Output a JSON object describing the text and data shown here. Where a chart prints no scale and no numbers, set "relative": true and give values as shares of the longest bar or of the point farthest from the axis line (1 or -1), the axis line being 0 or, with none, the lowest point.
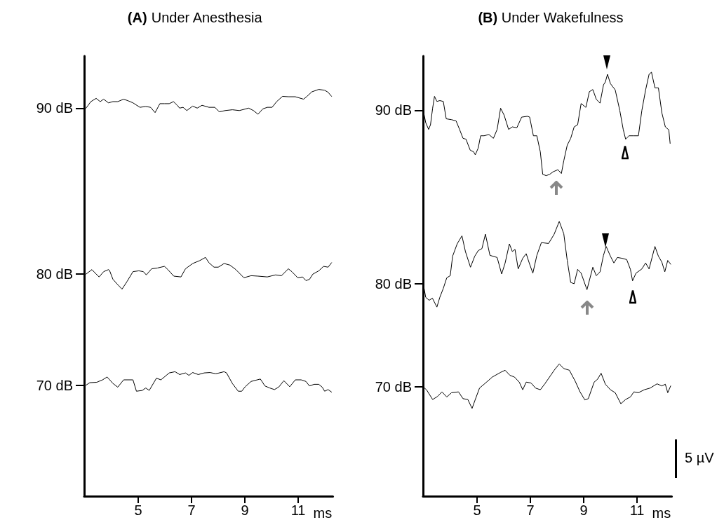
{
  "chart_data": [
    {
      "type": "line",
      "title": "(A) Under Anesthesia",
      "xlabel": "ms",
      "xlim": [
        2.97,
        12.3
      ],
      "xticks": [
        5,
        7,
        9,
        11
      ],
      "relative": true,
      "legend": "left",
      "grid": false,
      "marker": "none",
      "line_style": "solid",
      "series": [
        {
          "name": "90 dB",
          "color": "#000000",
          "x": [
            3.04,
            3.22,
            3.42,
            3.57,
            3.7,
            3.88,
            4.05,
            4.23,
            4.45,
            4.62,
            4.8,
            5.06,
            5.28,
            5.46,
            5.63,
            5.81,
            5.98,
            6.16,
            6.32,
            6.46,
            6.55,
            6.68,
            6.82,
            7.04,
            7.21,
            7.39,
            7.65,
            7.87,
            8.04,
            8.26,
            8.53,
            8.79,
            9.14,
            9.32,
            9.49,
            9.67,
            9.84,
            10.02,
            10.19,
            10.41,
            10.63,
            10.89,
            11.2,
            11.33,
            11.51,
            11.77,
            11.99,
            12.12,
            12.25
          ],
          "values": [
            0.954,
            0.97,
            0.978,
            0.97,
            0.976,
            0.967,
            0.97,
            0.97,
            0.976,
            0.972,
            0.967,
            0.956,
            0.958,
            0.956,
            0.943,
            0.965,
            0.965,
            0.965,
            0.97,
            0.961,
            0.954,
            0.956,
            0.948,
            0.959,
            0.954,
            0.961,
            0.956,
            0.956,
            0.945,
            0.948,
            0.95,
            0.948,
            0.954,
            0.948,
            0.939,
            0.952,
            0.956,
            0.956,
            0.97,
            0.983,
            0.982,
            0.982,
            0.976,
            0.983,
            0.994,
            1,
            0.998,
            0.993,
            0.983
          ]
        },
        {
          "name": "80 dB",
          "color": "#000000",
          "x": [
            3.04,
            3.26,
            3.39,
            3.53,
            3.7,
            3.88,
            3.92,
            4.05,
            4.23,
            4.39,
            4.58,
            4.8,
            5.02,
            5.19,
            5.3,
            5.5,
            5.72,
            5.98,
            6.11,
            6.33,
            6.6,
            6.77,
            7.04,
            7.3,
            7.52,
            7.65,
            7.84,
            8.0,
            8.22,
            8.44,
            8.66,
            8.96,
            9.23,
            9.49,
            9.84,
            10.15,
            10.37,
            10.63,
            10.76,
            10.98,
            11.16,
            11.29,
            11.42,
            11.55,
            11.77,
            11.95,
            12.12,
            12.25
          ],
          "values": [
            0.546,
            0.557,
            0.548,
            0.539,
            0.552,
            0.557,
            0.555,
            0.533,
            0.52,
            0.509,
            0.528,
            0.552,
            0.554,
            0.552,
            0.544,
            0.559,
            0.561,
            0.565,
            0.557,
            0.541,
            0.539,
            0.559,
            0.572,
            0.579,
            0.587,
            0.574,
            0.563,
            0.563,
            0.572,
            0.568,
            0.557,
            0.537,
            0.542,
            0.541,
            0.539,
            0.544,
            0.542,
            0.559,
            0.552,
            0.537,
            0.539,
            0.53,
            0.533,
            0.546,
            0.554,
            0.565,
            0.563,
            0.574
          ]
        },
        {
          "name": "70 dB",
          "color": "#000000",
          "x": [
            3.04,
            3.18,
            3.44,
            3.66,
            3.83,
            4.05,
            4.23,
            4.45,
            4.8,
            4.93,
            5.15,
            5.28,
            5.41,
            5.68,
            5.85,
            6.16,
            6.38,
            6.55,
            6.77,
            6.9,
            7.04,
            7.25,
            7.47,
            7.69,
            7.91,
            8.22,
            8.31,
            8.53,
            8.75,
            8.88,
            9.01,
            9.23,
            9.58,
            9.75,
            9.93,
            10.11,
            10.28,
            10.46,
            10.68,
            10.89,
            11.11,
            11.29,
            11.42,
            11.6,
            11.77,
            11.9,
            11.99,
            12.12,
            12.25
          ],
          "values": [
            0.273,
            0.279,
            0.28,
            0.286,
            0.293,
            0.277,
            0.268,
            0.286,
            0.286,
            0.258,
            0.26,
            0.266,
            0.26,
            0.29,
            0.286,
            0.303,
            0.306,
            0.299,
            0.303,
            0.297,
            0.304,
            0.299,
            0.303,
            0.304,
            0.301,
            0.306,
            0.303,
            0.277,
            0.258,
            0.258,
            0.269,
            0.282,
            0.288,
            0.271,
            0.266,
            0.262,
            0.269,
            0.284,
            0.269,
            0.286,
            0.286,
            0.282,
            0.271,
            0.275,
            0.275,
            0.268,
            0.258,
            0.262,
            0.256
          ]
        }
      ]
    },
    {
      "type": "line",
      "title": "(B) Under Wakefulness",
      "xlabel": "ms",
      "xlim": [
        2.97,
        12.3
      ],
      "xticks": [
        5,
        7,
        9,
        11
      ],
      "relative": true,
      "legend": "left",
      "grid": false,
      "marker": "none",
      "line_style": "solid",
      "annotations": [
        "5 µV"
      ],
      "series": [
        {
          "name": "90 dB",
          "color": "#000000",
          "x": [
            2.98,
            3.07,
            3.18,
            3.25,
            3.33,
            3.4,
            3.49,
            3.6,
            3.73,
            3.84,
            4.04,
            4.21,
            4.34,
            4.47,
            4.58,
            4.74,
            4.87,
            4.93,
            5.04,
            5.13,
            5.26,
            5.44,
            5.61,
            5.75,
            5.88,
            6.01,
            6.18,
            6.32,
            6.49,
            6.67,
            6.89,
            6.97,
            7.11,
            7.24,
            7.37,
            7.46,
            7.59,
            7.72,
            7.85,
            8.03,
            8.16,
            8.25,
            8.38,
            8.51,
            8.64,
            8.77,
            8.9,
            9.08,
            9.21,
            9.34,
            9.47,
            9.61,
            9.74,
            9.81,
            9.89,
            10.0,
            10.18,
            10.35,
            10.48,
            10.57,
            10.7,
            10.88,
            11.05,
            11.18,
            11.32,
            11.45,
            11.54,
            11.67,
            11.8,
            11.93,
            12.06,
            12.19,
            12.24
          ],
          "values": [
            0.91,
            0.881,
            0.865,
            0.876,
            0.915,
            0.943,
            0.931,
            0.933,
            0.931,
            0.89,
            0.888,
            0.885,
            0.865,
            0.844,
            0.842,
            0.816,
            0.812,
            0.805,
            0.821,
            0.85,
            0.85,
            0.853,
            0.844,
            0.865,
            0.915,
            0.899,
            0.865,
            0.871,
            0.869,
            0.894,
            0.896,
            0.894,
            0.85,
            0.85,
            0.812,
            0.759,
            0.756,
            0.759,
            0.765,
            0.77,
            0.761,
            0.791,
            0.828,
            0.844,
            0.871,
            0.876,
            0.926,
            0.917,
            0.954,
            0.959,
            0.936,
            0.927,
            0.97,
            0.977,
            0.995,
            0.973,
            0.958,
            0.91,
            0.865,
            0.842,
            0.85,
            0.85,
            0.85,
            0.91,
            0.958,
            0.995,
            1,
            0.963,
            0.963,
            0.904,
            0.871,
            0.864,
            0.832
          ]
        },
        {
          "name": "80 dB",
          "color": "#000000",
          "x": [
            2.98,
            3.07,
            3.2,
            3.32,
            3.49,
            3.6,
            3.73,
            3.86,
            3.99,
            4.08,
            4.25,
            4.43,
            4.56,
            4.75,
            4.91,
            5.04,
            5.18,
            5.31,
            5.48,
            5.75,
            5.92,
            6.05,
            6.21,
            6.32,
            6.42,
            6.54,
            6.71,
            6.84,
            6.97,
            7.09,
            7.24,
            7.41,
            7.68,
            7.89,
            8.08,
            8.25,
            8.38,
            8.51,
            8.64,
            8.77,
            8.9,
            9.12,
            9.34,
            9.47,
            9.61,
            9.74,
            9.84,
            10.0,
            10.13,
            10.26,
            10.44,
            10.61,
            10.75,
            10.83,
            10.96,
            11.18,
            11.32,
            11.45,
            11.67,
            11.8,
            11.93,
            12.04,
            12.15,
            12.26
          ],
          "values": [
            0.501,
            0.469,
            0.462,
            0.467,
            0.446,
            0.469,
            0.49,
            0.515,
            0.52,
            0.566,
            0.595,
            0.614,
            0.577,
            0.54,
            0.566,
            0.579,
            0.584,
            0.618,
            0.568,
            0.563,
            0.524,
            0.55,
            0.595,
            0.577,
            0.582,
            0.536,
            0.561,
            0.572,
            0.547,
            0.526,
            0.568,
            0.598,
            0.596,
            0.618,
            0.648,
            0.619,
            0.556,
            0.504,
            0.501,
            0.535,
            0.526,
            0.487,
            0.54,
            0.52,
            0.529,
            0.568,
            0.589,
            0.566,
            0.55,
            0.563,
            0.561,
            0.558,
            0.535,
            0.508,
            0.526,
            0.536,
            0.55,
            0.536,
            0.589,
            0.566,
            0.552,
            0.529,
            0.556,
            0.547
          ]
        },
        {
          "name": "70 dB",
          "color": "#000000",
          "x": [
            2.98,
            3.11,
            3.33,
            3.51,
            3.68,
            3.86,
            4.04,
            4.3,
            4.47,
            4.65,
            4.81,
            4.93,
            5.09,
            5.26,
            5.57,
            5.88,
            6.05,
            6.23,
            6.4,
            6.58,
            6.71,
            6.84,
            7.02,
            7.19,
            7.37,
            7.54,
            7.76,
            7.89,
            8.08,
            8.25,
            8.46,
            8.68,
            8.86,
            9.04,
            9.17,
            9.39,
            9.52,
            9.65,
            9.81,
            10.0,
            10.18,
            10.39,
            10.57,
            10.75,
            10.88,
            11.05,
            11.27,
            11.49,
            11.75,
            11.93,
            12.06,
            12.15,
            12.26
          ],
          "values": [
            0.258,
            0.25,
            0.228,
            0.235,
            0.246,
            0.234,
            0.244,
            0.246,
            0.23,
            0.228,
            0.207,
            0.228,
            0.255,
            0.264,
            0.281,
            0.292,
            0.297,
            0.285,
            0.281,
            0.269,
            0.251,
            0.269,
            0.267,
            0.255,
            0.251,
            0.265,
            0.285,
            0.297,
            0.312,
            0.301,
            0.297,
            0.271,
            0.246,
            0.227,
            0.23,
            0.269,
            0.276,
            0.29,
            0.264,
            0.251,
            0.244,
            0.218,
            0.228,
            0.234,
            0.246,
            0.244,
            0.251,
            0.255,
            0.265,
            0.26,
            0.264,
            0.244,
            0.26
          ]
        }
      ]
    }
  ]
}
